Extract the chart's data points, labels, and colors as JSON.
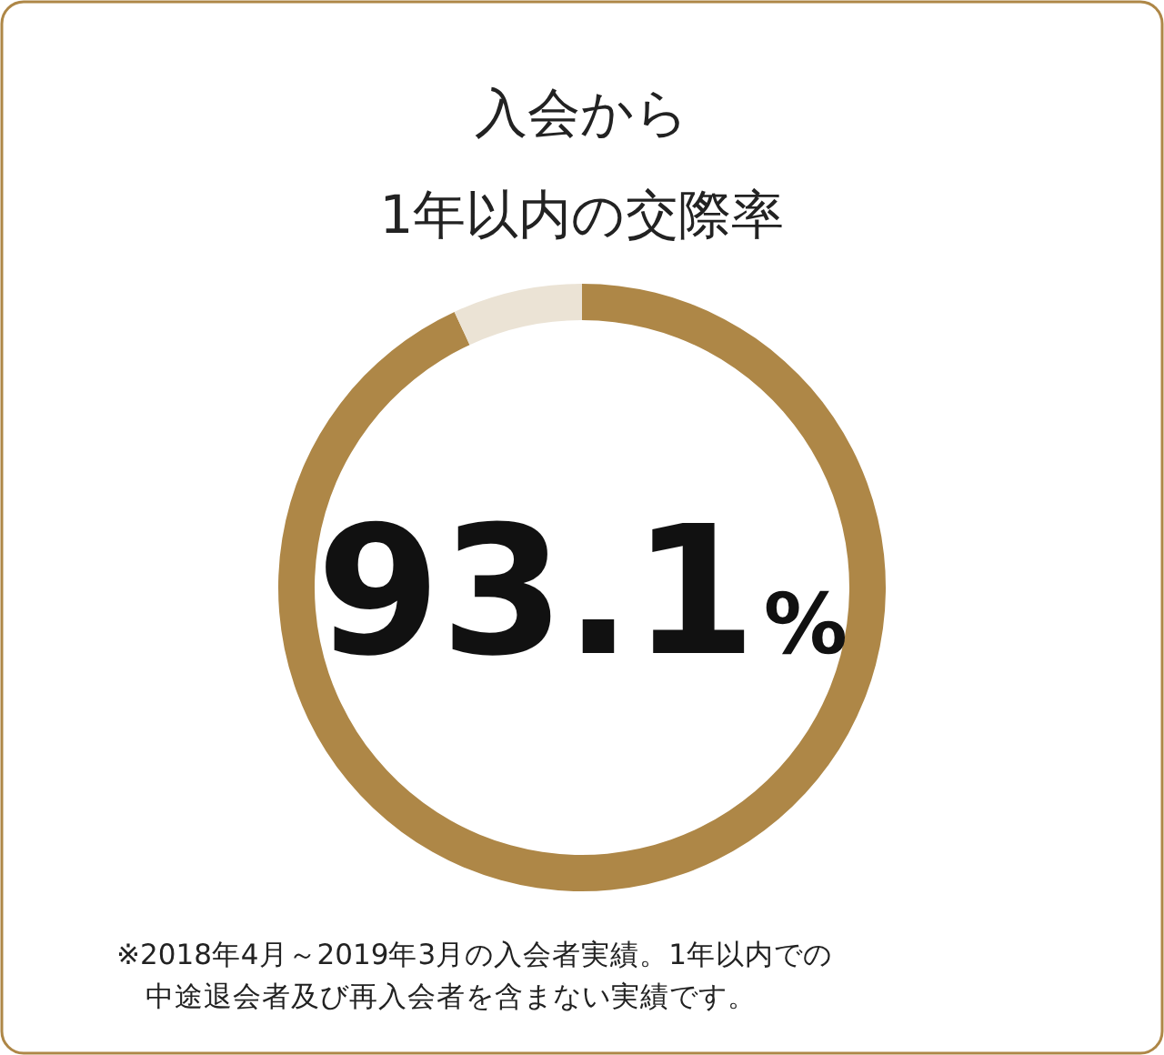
{
  "chart_data": {
    "type": "donut",
    "title": "入会から\n1年以内の交際率",
    "categories": [
      null,
      null
    ],
    "values": [
      93.1,
      6.9
    ],
    "colors": [
      "#ae8747",
      "#ebe3d5"
    ],
    "value_labels": [
      "93.1%",
      null
    ],
    "annotations": [
      "※2018年4月～2019年3月の入会者実績。1年以内での中途退会者及び再入会者を含まない実績です。"
    ]
  }
}
